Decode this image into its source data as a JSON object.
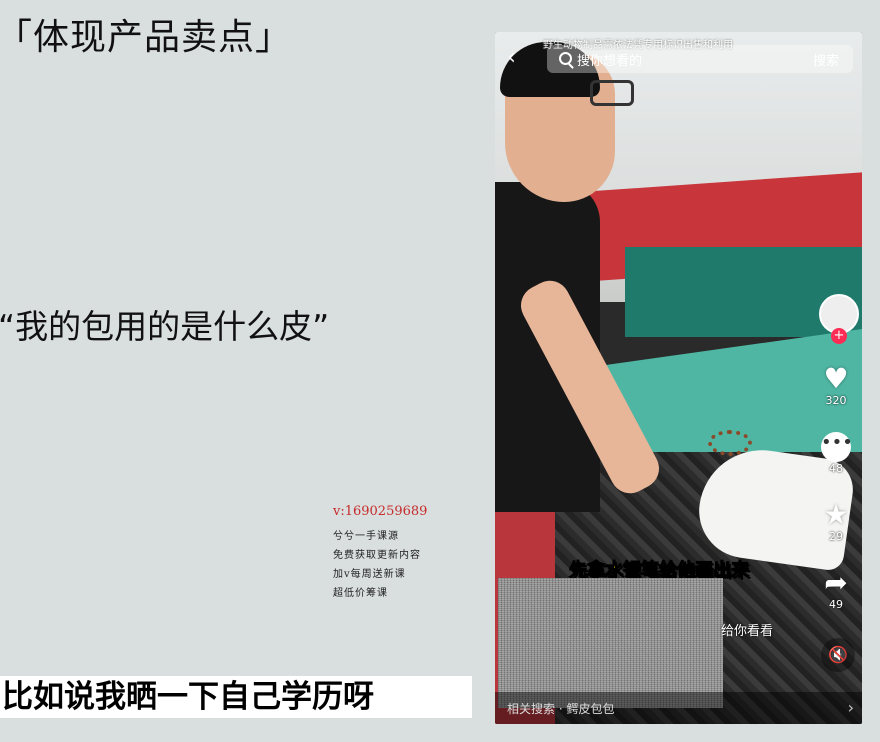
{
  "slide": {
    "heading1": "「体现产品卖点」",
    "heading2": "“我的包用的是什么皮”",
    "subtitle": "比如说我晒一下自己学历呀"
  },
  "watermark": {
    "contact": "v:1690259689",
    "lines": [
      "兮兮一手课源",
      "免费获取更新内容",
      "加v每周送新课",
      "超低价筹课"
    ]
  },
  "phone": {
    "top_caption": "野生动物制品需依法凭专用标识出售和利用",
    "search_placeholder": "搜你想看的",
    "search_button": "搜索",
    "likes": "320",
    "comments": "48",
    "favorites": "29",
    "shares": "49",
    "video_caption": "先拿水银笔给他画出来",
    "hint": "给你看看",
    "bottom_search": "相关搜索 · 鳄皮包包"
  },
  "icons": {
    "back": "chevron-left-icon",
    "search": "search-icon",
    "like": "heart-icon",
    "comment": "comment-icon",
    "favorite": "star-icon",
    "share": "share-icon",
    "mute": "mute-icon",
    "more": "chevron-right-icon"
  }
}
